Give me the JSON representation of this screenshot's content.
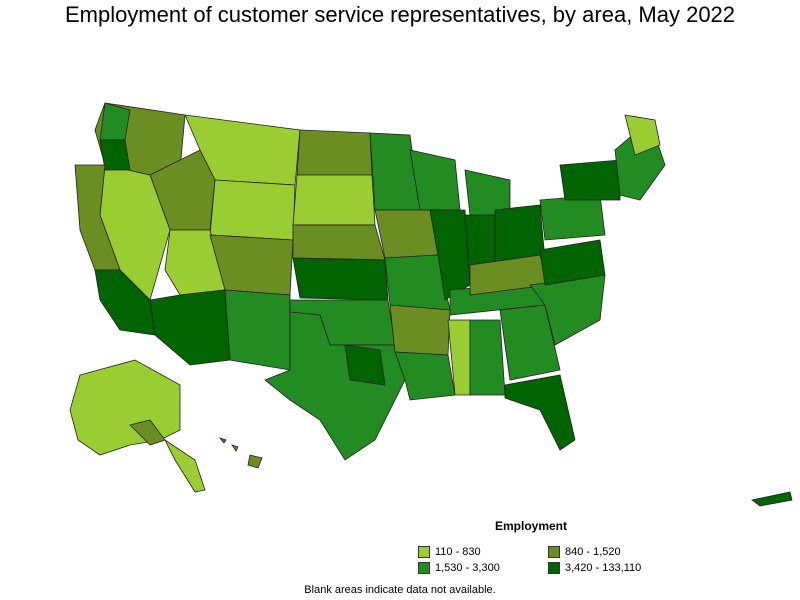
{
  "title": "Employment of customer service representatives, by area, May 2022",
  "legend": {
    "title": "Employment",
    "items": [
      {
        "label": "110 - 830",
        "color": "#9acd32"
      },
      {
        "label": "840 - 1,520",
        "color": "#6b8e23"
      },
      {
        "label": "1,530 - 3,300",
        "color": "#228b22"
      },
      {
        "label": "3,420 - 133,110",
        "color": "#006400"
      }
    ]
  },
  "footnote": "Blank areas indicate data not available.",
  "colors": {
    "border": "#333333",
    "background": "#ffffff"
  }
}
